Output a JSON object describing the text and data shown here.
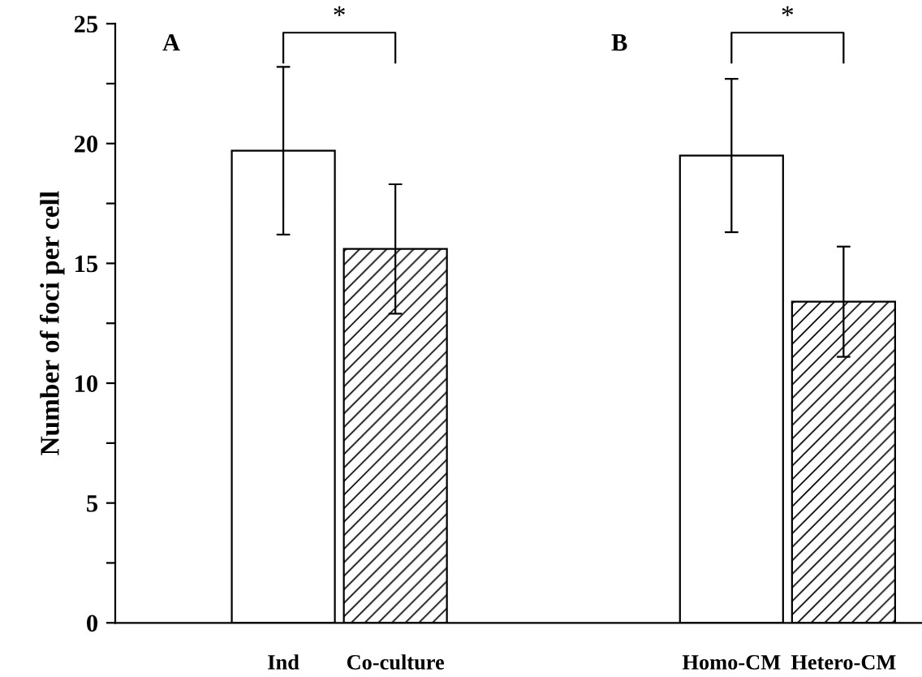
{
  "chart_data": {
    "type": "bar",
    "ylabel": "Number of foci per cell",
    "categories": [
      null,
      "Ind",
      "Co-culture",
      null,
      null,
      "Homo-CM",
      "Hetero-CM"
    ],
    "series": [
      {
        "color": "#ffffff",
        "values": [
          null,
          19.7,
          null,
          null,
          null,
          19.5,
          null
        ],
        "errors": [
          null,
          [
            16.2,
            23.2
          ],
          null,
          null,
          null,
          [
            16.3,
            22.7
          ],
          null
        ]
      },
      {
        "color": "#000000",
        "values": [
          null,
          null,
          15.6,
          null,
          null,
          null,
          13.4
        ],
        "errors": [
          null,
          null,
          [
            12.9,
            18.3
          ],
          null,
          null,
          null,
          [
            11.1,
            15.7
          ]
        ]
      }
    ],
    "ylim": [
      0,
      25
    ],
    "yticks": [
      0,
      {
        "value": 2.5,
        "label": null
      },
      5,
      {
        "value": 7.5,
        "label": null
      },
      10,
      {
        "value": 12.5,
        "label": null
      },
      15,
      {
        "value": 17.5,
        "label": null
      },
      20,
      {
        "value": 22.5,
        "label": null
      },
      25
    ],
    "annotations": [
      "A",
      "B",
      "*",
      "*"
    ],
    "grid": false,
    "legend": false
  }
}
